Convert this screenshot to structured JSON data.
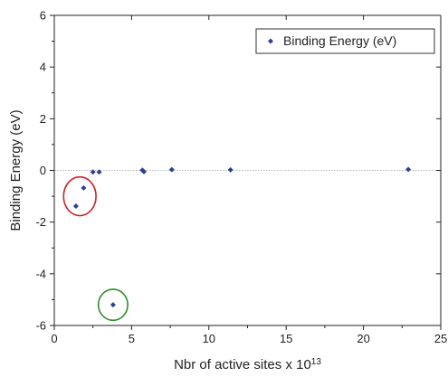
{
  "chart_data": {
    "type": "scatter",
    "xlabel": "Nbr of active sites x 10",
    "xlabel_superscript": "13",
    "ylabel": "Binding Energy (eV)",
    "xlim": [
      0,
      25
    ],
    "ylim": [
      -6,
      6
    ],
    "x_ticks": [
      "0",
      "5",
      "10",
      "15",
      "20",
      "25"
    ],
    "y_ticks": [
      "-6",
      "-4",
      "-2",
      "0",
      "2",
      "4",
      "6"
    ],
    "x_tick_values": [
      0,
      5,
      10,
      15,
      20,
      25
    ],
    "y_tick_values": [
      -6,
      -4,
      -2,
      0,
      2,
      4,
      6
    ],
    "grid": false,
    "reference_line_y": 0,
    "legend_position": "top-right",
    "series": [
      {
        "name": "Binding Energy (eV)",
        "color": "#2b3f99",
        "marker": "diamond",
        "x": [
          1.4,
          1.9,
          2.5,
          2.9,
          5.7,
          5.8,
          7.6,
          11.4,
          22.9
        ],
        "y": [
          -1.38,
          -0.68,
          -0.06,
          -0.06,
          0.01,
          -0.05,
          0.03,
          0.02,
          0.04
        ]
      }
    ],
    "annotations": [
      {
        "shape": "ellipse",
        "color": "#cc2222",
        "cx": 1.65,
        "cy": -1.0,
        "rx": 1.05,
        "ry": 0.75
      },
      {
        "shape": "ellipse",
        "color": "#2e8b2e",
        "cx": 3.8,
        "cy": -5.2,
        "rx": 0.95,
        "ry": 0.6
      }
    ],
    "annotation_points": [
      {
        "x": 3.8,
        "y": -5.2
      }
    ]
  }
}
